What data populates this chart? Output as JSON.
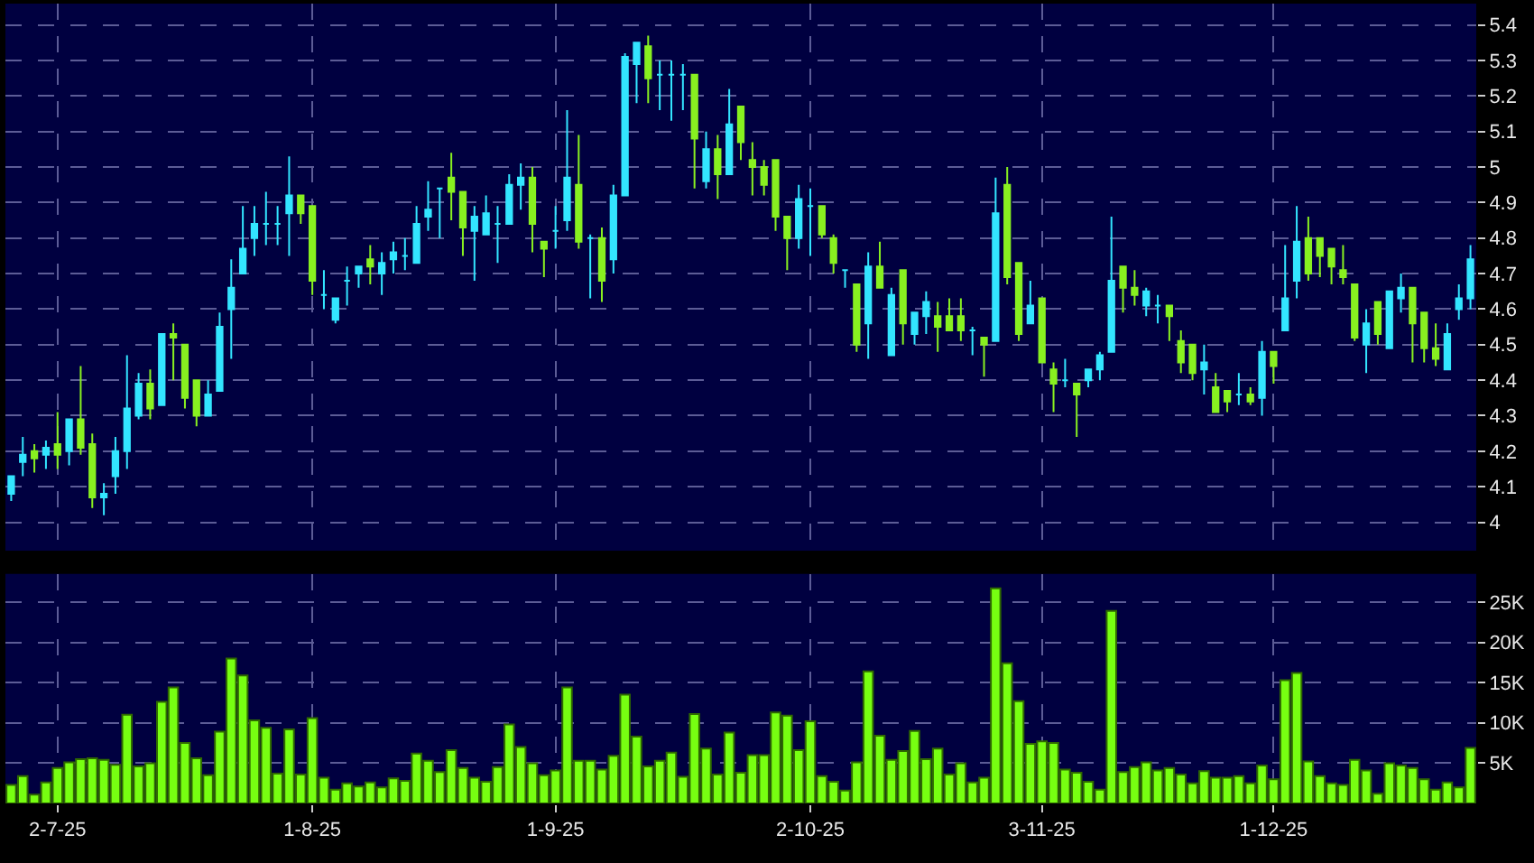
{
  "chart_data": [
    {
      "type": "candlestick",
      "categories": [
        null,
        null,
        null,
        null,
        null,
        null,
        null,
        null,
        null,
        null,
        null,
        null,
        null,
        null,
        null,
        null,
        null,
        null,
        null,
        null,
        null,
        null,
        null,
        null,
        null,
        null,
        null,
        null,
        null,
        null,
        null,
        null,
        null,
        null,
        null,
        null,
        null,
        null,
        null,
        null,
        null,
        null,
        null,
        null,
        null,
        null,
        null,
        null,
        null,
        null,
        null,
        null,
        null,
        null,
        null,
        null,
        null,
        null,
        null,
        null,
        null,
        null,
        null,
        null,
        null,
        null,
        null,
        null,
        null,
        null,
        null,
        null,
        null,
        null,
        null,
        null,
        null,
        null,
        null,
        null,
        null,
        null,
        null,
        null,
        null,
        null,
        null,
        null,
        null,
        null,
        null,
        null,
        null,
        null,
        null,
        null,
        null,
        null,
        null,
        null,
        null,
        null,
        null,
        null,
        null,
        null,
        null,
        null,
        null,
        null,
        null,
        null,
        null,
        null,
        null,
        null,
        null,
        null,
        null,
        null,
        null,
        null,
        null,
        null,
        null,
        null,
        null
      ],
      "ohlc": [
        [
          4.08,
          4.13,
          4.06,
          4.13
        ],
        [
          4.17,
          4.24,
          4.13,
          4.19
        ],
        [
          4.2,
          4.22,
          4.14,
          4.18
        ],
        [
          4.19,
          4.23,
          4.15,
          4.21
        ],
        [
          4.22,
          4.31,
          4.15,
          4.19
        ],
        [
          4.2,
          4.29,
          4.16,
          4.29
        ],
        [
          4.29,
          4.44,
          4.19,
          4.21
        ],
        [
          4.22,
          4.25,
          4.04,
          4.07
        ],
        [
          4.07,
          4.11,
          4.02,
          4.08
        ],
        [
          4.13,
          4.24,
          4.08,
          4.2
        ],
        [
          4.2,
          4.47,
          4.15,
          4.32
        ],
        [
          4.3,
          4.42,
          4.29,
          4.39
        ],
        [
          4.39,
          4.43,
          4.29,
          4.32
        ],
        [
          4.33,
          4.53,
          4.33,
          4.53
        ],
        [
          4.53,
          4.56,
          4.4,
          4.52
        ],
        [
          4.5,
          4.5,
          4.32,
          4.35
        ],
        [
          4.4,
          4.4,
          4.27,
          4.3
        ],
        [
          4.3,
          4.4,
          4.3,
          4.36
        ],
        [
          4.37,
          4.59,
          4.37,
          4.55
        ],
        [
          4.6,
          4.74,
          4.46,
          4.66
        ],
        [
          4.7,
          4.89,
          4.7,
          4.77
        ],
        [
          4.8,
          4.89,
          4.75,
          4.84
        ],
        [
          4.84,
          4.93,
          4.78,
          4.84
        ],
        [
          4.84,
          4.89,
          4.78,
          4.84
        ],
        [
          4.87,
          5.03,
          4.75,
          4.92
        ],
        [
          4.92,
          4.92,
          4.84,
          4.87
        ],
        [
          4.89,
          4.89,
          4.64,
          4.68
        ],
        [
          4.64,
          4.71,
          4.6,
          4.64
        ],
        [
          4.57,
          4.63,
          4.56,
          4.63
        ],
        [
          4.68,
          4.72,
          4.61,
          4.68
        ],
        [
          4.7,
          4.72,
          4.66,
          4.72
        ],
        [
          4.74,
          4.78,
          4.67,
          4.72
        ],
        [
          4.7,
          4.76,
          4.64,
          4.73
        ],
        [
          4.74,
          4.79,
          4.7,
          4.76
        ],
        [
          4.75,
          4.8,
          4.71,
          4.75
        ],
        [
          4.73,
          4.89,
          4.73,
          4.84
        ],
        [
          4.86,
          4.96,
          4.82,
          4.88
        ],
        [
          4.94,
          4.94,
          4.8,
          4.94
        ],
        [
          4.97,
          5.04,
          4.85,
          4.93
        ],
        [
          4.93,
          4.93,
          4.75,
          4.83
        ],
        [
          4.82,
          4.89,
          4.68,
          4.86
        ],
        [
          4.81,
          4.92,
          4.81,
          4.87
        ],
        [
          4.84,
          4.89,
          4.73,
          4.84
        ],
        [
          4.84,
          4.98,
          4.84,
          4.95
        ],
        [
          4.95,
          5.01,
          4.88,
          4.97
        ],
        [
          4.97,
          5.0,
          4.76,
          4.84
        ],
        [
          4.79,
          4.79,
          4.69,
          4.77
        ],
        [
          4.82,
          4.89,
          4.77,
          4.82
        ],
        [
          4.85,
          5.16,
          4.82,
          4.97
        ],
        [
          4.95,
          5.09,
          4.77,
          4.79
        ],
        [
          4.8,
          4.81,
          4.63,
          4.8
        ],
        [
          4.8,
          4.83,
          4.62,
          4.68
        ],
        [
          4.74,
          4.95,
          4.7,
          4.92
        ],
        [
          4.92,
          5.32,
          4.92,
          5.31
        ],
        [
          5.29,
          5.35,
          5.18,
          5.35
        ],
        [
          5.34,
          5.37,
          5.18,
          5.25
        ],
        [
          5.26,
          5.3,
          5.16,
          5.26
        ],
        [
          5.26,
          5.3,
          5.13,
          5.26
        ],
        [
          5.26,
          5.29,
          5.16,
          5.26
        ],
        [
          5.26,
          5.26,
          4.94,
          5.08
        ],
        [
          4.96,
          5.1,
          4.94,
          5.05
        ],
        [
          5.05,
          5.09,
          4.91,
          4.98
        ],
        [
          4.98,
          5.22,
          4.98,
          5.12
        ],
        [
          5.17,
          5.17,
          5.02,
          5.07
        ],
        [
          5.02,
          5.07,
          4.92,
          5.0
        ],
        [
          5.0,
          5.02,
          4.92,
          4.95
        ],
        [
          5.02,
          5.02,
          4.82,
          4.86
        ],
        [
          4.86,
          4.86,
          4.71,
          4.8
        ],
        [
          4.8,
          4.95,
          4.77,
          4.91
        ],
        [
          4.89,
          4.94,
          4.75,
          4.89
        ],
        [
          4.89,
          4.89,
          4.8,
          4.81
        ],
        [
          4.8,
          4.81,
          4.7,
          4.73
        ],
        [
          4.71,
          4.71,
          4.66,
          4.71
        ],
        [
          4.67,
          4.67,
          4.48,
          4.5
        ],
        [
          4.56,
          4.76,
          4.46,
          4.72
        ],
        [
          4.72,
          4.79,
          4.66,
          4.66
        ],
        [
          4.47,
          4.66,
          4.47,
          4.64
        ],
        [
          4.71,
          4.71,
          4.5,
          4.56
        ],
        [
          4.53,
          4.59,
          4.5,
          4.59
        ],
        [
          4.58,
          4.65,
          4.53,
          4.62
        ],
        [
          4.58,
          4.62,
          4.48,
          4.55
        ],
        [
          4.58,
          4.63,
          4.54,
          4.54
        ],
        [
          4.58,
          4.63,
          4.51,
          4.54
        ],
        [
          4.54,
          4.55,
          4.47,
          4.54
        ],
        [
          4.52,
          4.52,
          4.41,
          4.5
        ],
        [
          4.51,
          4.97,
          4.51,
          4.87
        ],
        [
          4.95,
          5.0,
          4.67,
          4.69
        ],
        [
          4.73,
          4.73,
          4.51,
          4.53
        ],
        [
          4.56,
          4.68,
          4.56,
          4.61
        ],
        [
          4.63,
          4.63,
          4.45,
          4.45
        ],
        [
          4.43,
          4.45,
          4.31,
          4.39
        ],
        [
          4.4,
          4.46,
          4.38,
          4.4
        ],
        [
          4.39,
          4.39,
          4.24,
          4.36
        ],
        [
          4.4,
          4.43,
          4.38,
          4.43
        ],
        [
          4.43,
          4.48,
          4.4,
          4.47
        ],
        [
          4.48,
          4.86,
          4.48,
          4.68
        ],
        [
          4.72,
          4.72,
          4.59,
          4.66
        ],
        [
          4.66,
          4.71,
          4.61,
          4.64
        ],
        [
          4.61,
          4.66,
          4.58,
          4.65
        ],
        [
          4.61,
          4.64,
          4.56,
          4.61
        ],
        [
          4.61,
          4.61,
          4.51,
          4.58
        ],
        [
          4.51,
          4.54,
          4.42,
          4.45
        ],
        [
          4.5,
          4.5,
          4.4,
          4.42
        ],
        [
          4.43,
          4.5,
          4.36,
          4.45
        ],
        [
          4.38,
          4.42,
          4.31,
          4.31
        ],
        [
          4.37,
          4.37,
          4.31,
          4.34
        ],
        [
          4.36,
          4.42,
          4.33,
          4.36
        ],
        [
          4.36,
          4.38,
          4.33,
          4.34
        ],
        [
          4.35,
          4.51,
          4.3,
          4.48
        ],
        [
          4.48,
          4.48,
          4.39,
          4.44
        ],
        [
          4.54,
          4.78,
          4.54,
          4.63
        ],
        [
          4.68,
          4.89,
          4.63,
          4.79
        ],
        [
          4.8,
          4.86,
          4.68,
          4.7
        ],
        [
          4.8,
          4.8,
          4.69,
          4.75
        ],
        [
          4.77,
          4.77,
          4.67,
          4.72
        ],
        [
          4.71,
          4.78,
          4.67,
          4.69
        ],
        [
          4.67,
          4.67,
          4.51,
          4.52
        ],
        [
          4.5,
          4.6,
          4.42,
          4.56
        ],
        [
          4.62,
          4.62,
          4.5,
          4.53
        ],
        [
          4.49,
          4.65,
          4.49,
          4.65
        ],
        [
          4.63,
          4.7,
          4.59,
          4.66
        ],
        [
          4.66,
          4.66,
          4.45,
          4.56
        ],
        [
          4.59,
          4.59,
          4.45,
          4.49
        ],
        [
          4.49,
          4.56,
          4.44,
          4.46
        ],
        [
          4.43,
          4.56,
          4.43,
          4.53
        ],
        [
          4.6,
          4.67,
          4.57,
          4.63
        ],
        [
          4.63,
          4.78,
          4.6,
          4.74
        ]
      ],
      "colors": [
        "#33e5ff",
        "#33e5ff",
        "#88f020",
        "#33e5ff",
        "#88f020",
        "#33e5ff",
        "#88f020",
        "#88f020",
        "#33e5ff",
        "#33e5ff",
        "#33e5ff",
        "#33e5ff",
        "#88f020",
        "#33e5ff",
        "#88f020",
        "#88f020",
        "#88f020",
        "#33e5ff",
        "#33e5ff",
        "#33e5ff",
        "#33e5ff",
        "#33e5ff",
        "#33e5ff",
        "#33e5ff",
        "#33e5ff",
        "#88f020",
        "#88f020",
        "#33e5ff",
        "#33e5ff",
        "#33e5ff",
        "#33e5ff",
        "#88f020",
        "#33e5ff",
        "#33e5ff",
        "#33e5ff",
        "#33e5ff",
        "#33e5ff",
        "#33e5ff",
        "#88f020",
        "#88f020",
        "#33e5ff",
        "#33e5ff",
        "#33e5ff",
        "#33e5ff",
        "#33e5ff",
        "#88f020",
        "#88f020",
        "#33e5ff",
        "#33e5ff",
        "#88f020",
        "#33e5ff",
        "#88f020",
        "#33e5ff",
        "#33e5ff",
        "#33e5ff",
        "#88f020",
        "#33e5ff",
        "#33e5ff",
        "#33e5ff",
        "#88f020",
        "#33e5ff",
        "#88f020",
        "#33e5ff",
        "#88f020",
        "#88f020",
        "#88f020",
        "#88f020",
        "#88f020",
        "#33e5ff",
        "#33e5ff",
        "#88f020",
        "#88f020",
        "#33e5ff",
        "#88f020",
        "#33e5ff",
        "#88f020",
        "#33e5ff",
        "#88f020",
        "#33e5ff",
        "#33e5ff",
        "#88f020",
        "#88f020",
        "#88f020",
        "#33e5ff",
        "#88f020",
        "#33e5ff",
        "#88f020",
        "#88f020",
        "#33e5ff",
        "#88f020",
        "#88f020",
        "#33e5ff",
        "#88f020",
        "#33e5ff",
        "#33e5ff",
        "#33e5ff",
        "#88f020",
        "#88f020",
        "#33e5ff",
        "#33e5ff",
        "#88f020",
        "#88f020",
        "#88f020",
        "#33e5ff",
        "#88f020",
        "#88f020",
        "#33e5ff",
        "#88f020",
        "#33e5ff",
        "#88f020",
        "#33e5ff",
        "#33e5ff",
        "#88f020",
        "#88f020",
        "#88f020",
        "#88f020",
        "#88f020",
        "#33e5ff",
        "#88f020",
        "#33e5ff",
        "#33e5ff",
        "#88f020",
        "#88f020",
        "#88f020",
        "#33e5ff",
        "#33e5ff",
        "#33e5ff"
      ],
      "ylim": [
        3.92,
        5.46
      ],
      "yticks": [
        4,
        4.1,
        4.2,
        4.3,
        4.4,
        4.5,
        4.6,
        4.7,
        4.8,
        4.9,
        5,
        5.1,
        5.2,
        5.3,
        5.4
      ],
      "grid": true,
      "tick_labels": "y"
    },
    {
      "type": "bar",
      "categories": [
        null,
        null,
        null,
        null,
        "2-7-25",
        null,
        null,
        null,
        null,
        null,
        null,
        null,
        null,
        null,
        null,
        null,
        null,
        null,
        null,
        null,
        null,
        null,
        null,
        null,
        null,
        null,
        "1-8-25",
        null,
        null,
        null,
        null,
        null,
        null,
        null,
        null,
        null,
        null,
        null,
        null,
        null,
        null,
        null,
        null,
        null,
        null,
        null,
        null,
        "1-9-25",
        null,
        null,
        null,
        null,
        null,
        null,
        null,
        null,
        null,
        null,
        null,
        null,
        null,
        null,
        null,
        null,
        null,
        null,
        null,
        null,
        null,
        "2-10-25",
        null,
        null,
        null,
        null,
        null,
        null,
        null,
        null,
        null,
        null,
        null,
        null,
        null,
        null,
        null,
        null,
        null,
        null,
        null,
        "3-11-25",
        null,
        null,
        null,
        null,
        null,
        null,
        null,
        null,
        null,
        null,
        null,
        null,
        null,
        null,
        null,
        null,
        null,
        null,
        null,
        "1-12-25",
        null,
        null,
        null,
        null,
        null,
        null,
        null,
        null,
        null,
        null,
        null,
        null,
        null,
        null,
        null,
        null,
        null
      ],
      "values": [
        2300,
        3400,
        1100,
        2600,
        4400,
        5100,
        5500,
        5600,
        5400,
        4800,
        11000,
        4600,
        5000,
        12600,
        14400,
        7500,
        5600,
        3500,
        8900,
        18000,
        15900,
        10300,
        9400,
        3700,
        9200,
        3600,
        10600,
        3200,
        1700,
        2500,
        2100,
        2600,
        2000,
        3100,
        2800,
        6200,
        5300,
        3900,
        6600,
        4400,
        3200,
        2700,
        4500,
        9800,
        7000,
        5000,
        3500,
        4100,
        14400,
        5300,
        5300,
        4200,
        5900,
        13500,
        8300,
        4600,
        5300,
        6300,
        3300,
        11100,
        6800,
        3600,
        8800,
        3800,
        6000,
        6000,
        11300,
        10900,
        6600,
        10200,
        3400,
        2700,
        1600,
        5100,
        16400,
        8400,
        5400,
        6500,
        9000,
        5500,
        6800,
        3600,
        5000,
        2600,
        3200,
        26700,
        17400,
        12700,
        7400,
        7700,
        7500,
        4200,
        3800,
        2700,
        1700,
        23900,
        3900,
        4500,
        5100,
        4100,
        4400,
        3600,
        2500,
        4000,
        3200,
        3200,
        3400,
        2500,
        4700,
        3000,
        15300,
        16200,
        5200,
        3400,
        2500,
        2300,
        5400,
        4100,
        1200,
        5000,
        4700,
        4400,
        3000,
        1700,
        2600,
        2000,
        6900
      ],
      "color": "#77ff11",
      "ylim": [
        0,
        28500
      ],
      "yticks": [
        {
          "value": 5000,
          "label": "5K"
        },
        {
          "value": 10000,
          "label": "10K"
        },
        {
          "value": 15000,
          "label": "15K"
        },
        {
          "value": 20000,
          "label": "20K"
        },
        {
          "value": 25000,
          "label": "25K"
        }
      ],
      "grid": true
    }
  ]
}
